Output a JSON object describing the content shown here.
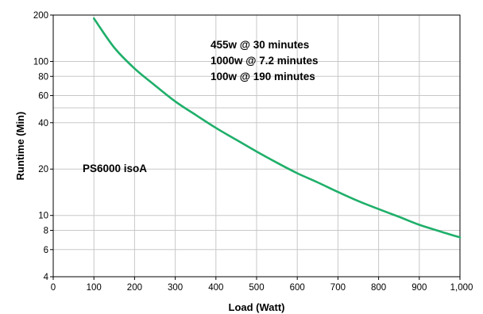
{
  "chart_data": {
    "type": "line",
    "xlabel": "Load (Watt)",
    "ylabel": "Runtime (Min)",
    "xlim": [
      0,
      1000
    ],
    "ylim": [
      4,
      200
    ],
    "y_scale": "log",
    "grid": true,
    "x_ticks": [
      0,
      100,
      200,
      300,
      400,
      500,
      600,
      700,
      800,
      900,
      1000
    ],
    "x_tick_labels": [
      "0",
      "100",
      "200",
      "300",
      "400",
      "500",
      "600",
      "700",
      "800",
      "900",
      "1,000"
    ],
    "y_ticks": [
      4,
      6,
      8,
      10,
      20,
      40,
      60,
      80,
      100,
      200
    ],
    "y_tick_labels": [
      "4",
      "6",
      "8",
      "10",
      "20",
      "40",
      "60",
      "80",
      "100",
      "200"
    ],
    "y_minor_gridlines": [
      50
    ],
    "series": [
      {
        "color": "#1faf6a",
        "x": [
          100,
          150,
          200,
          250,
          300,
          350,
          400,
          450,
          500,
          550,
          600,
          650,
          700,
          750,
          800,
          850,
          900,
          950,
          1000
        ],
        "y": [
          190,
          123,
          90,
          70,
          55,
          45,
          37,
          31,
          26,
          22,
          18.8,
          16.4,
          14.2,
          12.4,
          11,
          9.8,
          8.7,
          7.9,
          7.2
        ]
      }
    ],
    "annotations": [
      {
        "text": "455w @ 30 minutes"
      },
      {
        "text": "1000w @ 7.2 minutes"
      },
      {
        "text": "100w @ 190 minutes"
      },
      {
        "text": "PS6000 isoA"
      }
    ]
  }
}
